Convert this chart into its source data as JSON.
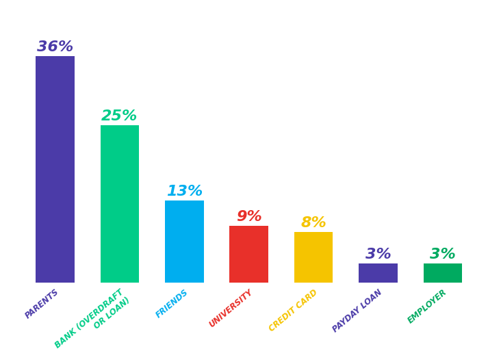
{
  "categories": [
    "PARENTS",
    "BANK (OVERDRAFT\nOR LOAN)",
    "FRIENDS",
    "UNIVERSITY",
    "CREDIT CARD",
    "PAYDAY LOAN",
    "EMPLOYER"
  ],
  "values": [
    36,
    25,
    13,
    9,
    8,
    3,
    3
  ],
  "bar_colors": [
    "#4B3BA8",
    "#00CC88",
    "#00AEEF",
    "#E8302A",
    "#F5C400",
    "#4B3BA8",
    "#00AA60"
  ],
  "label_colors": [
    "#4B3BA8",
    "#00CC88",
    "#00AEEF",
    "#E8302A",
    "#F5C400",
    "#4B3BA8",
    "#00AA60"
  ],
  "tick_colors": [
    "#4B3BA8",
    "#00CC88",
    "#00AEEF",
    "#E8302A",
    "#F5C400",
    "#4B3BA8",
    "#00AA60"
  ],
  "background_color": "#FFFFFF",
  "ylim": [
    0,
    42
  ],
  "value_fontsize": 16,
  "tick_fontsize": 8.5,
  "bar_width": 0.6,
  "figsize": [
    7.13,
    5.29
  ],
  "dpi": 100
}
